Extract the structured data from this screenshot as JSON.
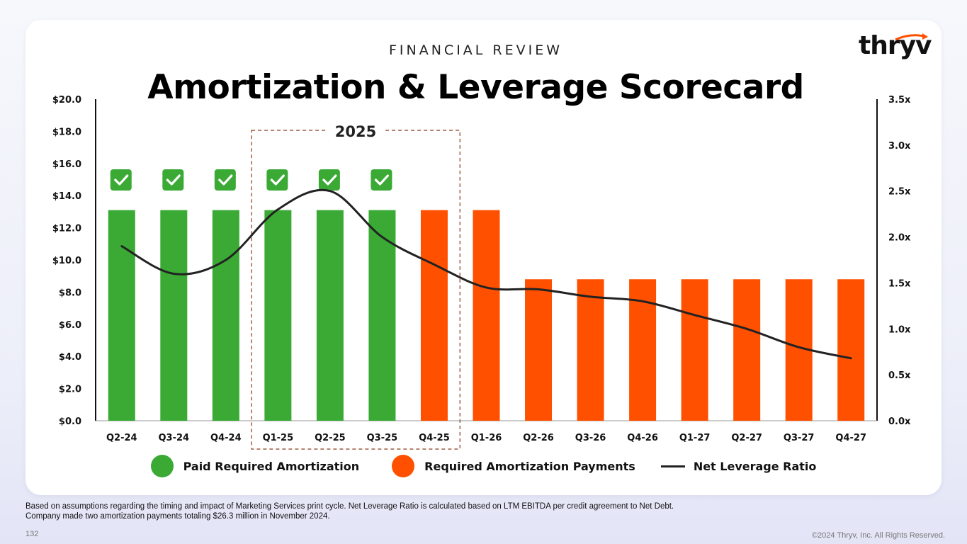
{
  "header": {
    "eyebrow": "FINANCIAL REVIEW",
    "title": "Amortization & Leverage Scorecard",
    "logo_text": "thryv"
  },
  "highlight_box": {
    "label": "2025",
    "start_category": "Q1-25",
    "end_category": "Q4-25"
  },
  "legend": {
    "paid": "Paid Required Amortization",
    "required": "Required Amortization Payments",
    "ratio": "Net Leverage Ratio"
  },
  "footnote": {
    "line1": "Based on assumptions regarding the timing and impact of Marketing Services print cycle. Net Leverage Ratio is calculated based on LTM EBITDA per credit agreement to Net Debt.",
    "line2": "Company made two amortization payments totaling $26.3 million in November 2024."
  },
  "page_number": "132",
  "copyright": "©2024 Thryv, Inc. All Rights Reserved.",
  "colors": {
    "paid": "#3aaa35",
    "required": "#ff5000",
    "ratio": "#222222",
    "check_bg": "#3aaa35"
  },
  "chart_data": {
    "type": "bar",
    "categories": [
      "Q2-24",
      "Q3-24",
      "Q4-24",
      "Q1-25",
      "Q2-25",
      "Q3-25",
      "Q4-25",
      "Q1-26",
      "Q2-26",
      "Q3-26",
      "Q4-26",
      "Q1-27",
      "Q2-27",
      "Q3-27",
      "Q4-27"
    ],
    "series": [
      {
        "name": "Paid Required Amortization",
        "axis": "left",
        "values": [
          13.1,
          13.1,
          13.1,
          13.1,
          13.1,
          13.1,
          null,
          null,
          null,
          null,
          null,
          null,
          null,
          null,
          null
        ]
      },
      {
        "name": "Required Amortization Payments",
        "axis": "left",
        "values": [
          null,
          null,
          null,
          null,
          null,
          null,
          13.1,
          13.1,
          8.8,
          8.8,
          8.8,
          8.8,
          8.8,
          8.8,
          8.8
        ]
      },
      {
        "name": "Net Leverage Ratio",
        "type": "line",
        "axis": "right",
        "values": [
          1.9,
          1.6,
          1.75,
          2.3,
          2.5,
          2.0,
          1.7,
          1.45,
          1.43,
          1.35,
          1.3,
          1.15,
          1.0,
          0.8,
          0.68
        ]
      }
    ],
    "paid_checkmarks": [
      "Q2-24",
      "Q3-24",
      "Q4-24",
      "Q1-25",
      "Q2-25",
      "Q3-25"
    ],
    "y_left": {
      "min": 0,
      "max": 20,
      "ticks": [
        "$0.0",
        "$2.0",
        "$4.0",
        "$6.0",
        "$8.0",
        "$10.0",
        "$12.0",
        "$14.0",
        "$16.0",
        "$18.0",
        "$20.0"
      ]
    },
    "y_right": {
      "min": 0,
      "max": 3.5,
      "ticks": [
        "0.0x",
        "0.5x",
        "1.0x",
        "1.5x",
        "2.0x",
        "2.5x",
        "3.0x",
        "3.5x"
      ]
    },
    "grid": false,
    "legend_position": "bottom"
  }
}
